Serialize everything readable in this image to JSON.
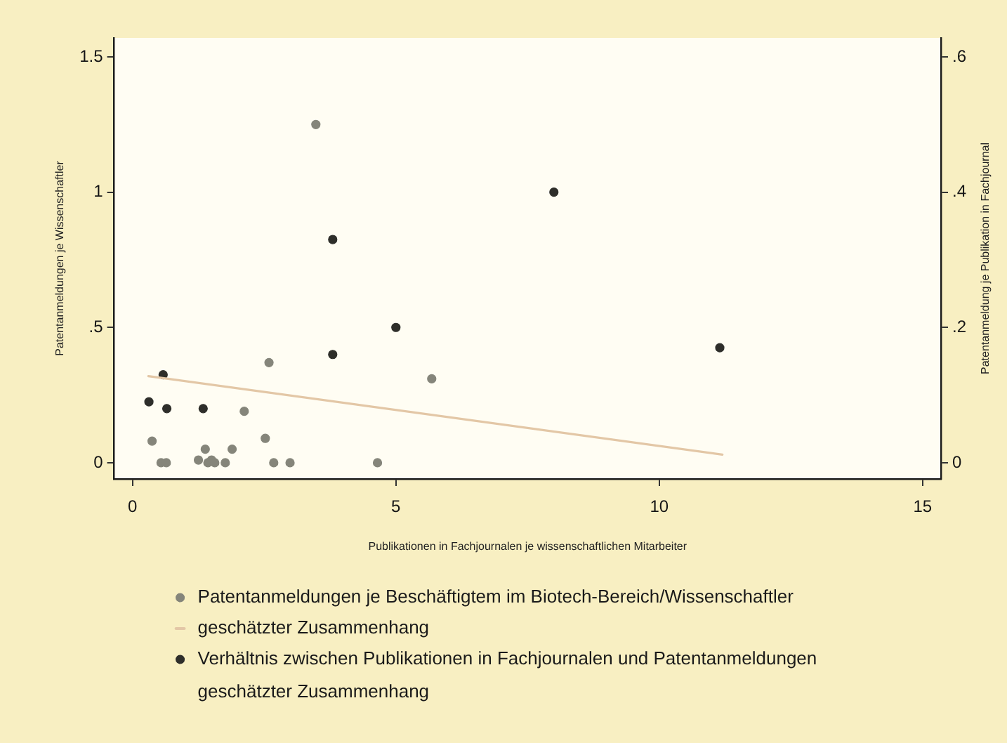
{
  "chart_data": {
    "type": "scatter",
    "xlabel": "Publikationen in Fachjournalen je wissenschaftlichen Mitarbeiter",
    "ylabel": "Patentanmeldungen je Wissenschaftler",
    "y2label": "Patentanmeldung je Publikation in Fachjournal",
    "xlim": [
      -0.35,
      15.35
    ],
    "xticks": [
      0,
      5,
      10,
      15
    ],
    "ylim": [
      -0.06,
      1.57
    ],
    "yticks": [
      0,
      {
        "value": 0.5,
        "label": ".5"
      },
      1,
      1.5
    ],
    "y2lim": [
      -0.024,
      0.628
    ],
    "y2ticks": [
      0,
      {
        "value": 0.2,
        "label": ".2"
      },
      {
        "value": 0.4,
        "label": ".4"
      },
      {
        "value": 0.6,
        "label": ".6"
      }
    ],
    "legend": "bottom",
    "marker": "circle",
    "annotations": [
      "geschätzter Zusammenhang"
    ],
    "series": [
      {
        "name": "Patentanmeldungen je Beschäftigtem im Biotech-Bereich/Wissenschaftler",
        "color": "#85857a",
        "x": [
          3.48,
          5.68,
          2.59,
          2.12,
          0.37,
          2.52,
          1.38,
          1.89,
          1.25,
          1.5,
          0.54,
          0.64,
          1.43,
          1.56,
          1.76,
          2.68,
          2.99,
          4.65
        ],
        "values": [
          1.25,
          0.31,
          0.37,
          0.19,
          0.08,
          0.09,
          0.05,
          0.05,
          0.01,
          0.01,
          0,
          0,
          0,
          0,
          0,
          0,
          0,
          0
        ]
      },
      {
        "name": "geschätzter Zusammenhang",
        "type": "line",
        "marker": "none",
        "color": "#e3c7a6",
        "x": [
          0.3,
          11.2
        ],
        "values": [
          0.32,
          0.03
        ]
      },
      {
        "name": "Verhältnis zwischen Publikationen in Fachjournalen und Patentanmeldungen",
        "axis": "y2",
        "color": "#2e2e2a",
        "x": [
          0.31,
          0.58,
          0.65,
          1.34,
          3.8,
          3.8,
          5.0,
          8.0,
          11.15
        ],
        "values": [
          0.09,
          0.13,
          0.08,
          0.08,
          0.33,
          0.16,
          0.2,
          0.4,
          0.17
        ]
      }
    ]
  }
}
